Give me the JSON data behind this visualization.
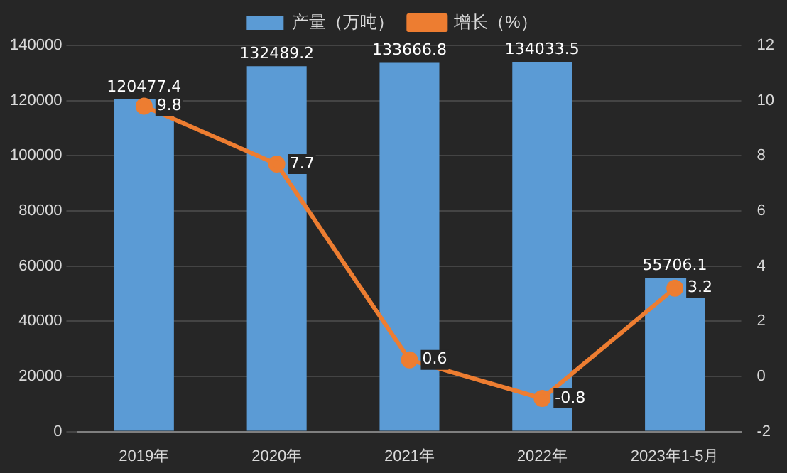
{
  "chart_data": {
    "type": "bar",
    "categories": [
      "2019年",
      "2020年",
      "2021年",
      "2022年",
      "2023年1-5月"
    ],
    "series": [
      {
        "name": "产量（万吨）",
        "color": "#5b9bd5",
        "values": [
          120477.4,
          132489.2,
          133666.8,
          134033.5,
          55706.1
        ]
      },
      {
        "name": "增长（%）",
        "type": "line",
        "axis": "y2",
        "color": "#ed7d31",
        "values": [
          9.8,
          7.7,
          0.6,
          -0.8,
          3.2
        ]
      }
    ],
    "ylim": [
      0,
      140000
    ],
    "yticks": [
      0,
      20000,
      40000,
      60000,
      80000,
      100000,
      120000,
      140000
    ],
    "y2lim": [
      -2,
      12
    ],
    "y2ticks": [
      -2,
      0,
      2,
      4,
      6,
      8,
      10,
      12
    ],
    "grid": "y",
    "legend": "top",
    "marker": "circle",
    "data_labels": true
  }
}
